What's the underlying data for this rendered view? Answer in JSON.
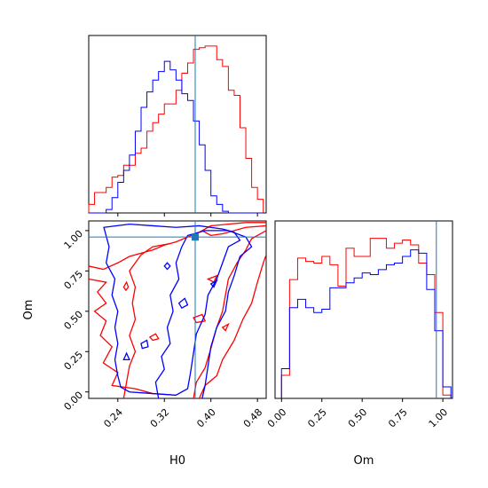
{
  "chart_data": [
    {
      "type": "histogram",
      "panel": "H0 marginal",
      "xlim": [
        0.19,
        0.495
      ],
      "truth": 0.373,
      "series": [
        {
          "name": "",
          "color": "#ff0000",
          "bin_edges": [
            0.19,
            0.2,
            0.21,
            0.22,
            0.23,
            0.24,
            0.25,
            0.26,
            0.27,
            0.28,
            0.29,
            0.3,
            0.31,
            0.32,
            0.33,
            0.34,
            0.35,
            0.36,
            0.37,
            0.38,
            0.39,
            0.4,
            0.41,
            0.42,
            0.43,
            0.44,
            0.45,
            0.46,
            0.47,
            0.48,
            0.49
          ],
          "counts": [
            0.05,
            0.12,
            0.12,
            0.15,
            0.21,
            0.22,
            0.28,
            0.28,
            0.35,
            0.38,
            0.48,
            0.53,
            0.58,
            0.64,
            0.64,
            0.72,
            0.82,
            0.88,
            0.96,
            0.97,
            0.98,
            0.98,
            0.9,
            0.86,
            0.72,
            0.69,
            0.5,
            0.32,
            0.15,
            0.08
          ]
        },
        {
          "name": "",
          "color": "#0000ff",
          "bin_edges": [
            0.19,
            0.2,
            0.21,
            0.22,
            0.23,
            0.24,
            0.25,
            0.26,
            0.27,
            0.28,
            0.29,
            0.3,
            0.31,
            0.32,
            0.33,
            0.34,
            0.35,
            0.36,
            0.37,
            0.38,
            0.39,
            0.4,
            0.41,
            0.42,
            0.43,
            0.44,
            0.45,
            0.46,
            0.47,
            0.48,
            0.49
          ],
          "counts": [
            0.0,
            0.0,
            0.0,
            0.02,
            0.09,
            0.18,
            0.25,
            0.34,
            0.48,
            0.62,
            0.71,
            0.78,
            0.83,
            0.89,
            0.84,
            0.78,
            0.7,
            0.66,
            0.54,
            0.4,
            0.25,
            0.1,
            0.05,
            0.01,
            0.0,
            0.0,
            0.0,
            0.0,
            0.0,
            0.0
          ]
        }
      ],
      "xticks": [
        "0.24",
        "0.32",
        "0.40",
        "0.48"
      ]
    },
    {
      "type": "contour",
      "panel": "H0 vs Om",
      "xlabel": "H0",
      "ylabel": "Om",
      "xlim": [
        0.19,
        0.495
      ],
      "ylim": [
        -0.04,
        1.06
      ],
      "truth": {
        "x": 0.373,
        "y": 0.96
      },
      "xticks": [
        "0.24",
        "0.32",
        "0.40",
        "0.48"
      ],
      "yticks": [
        "0.00",
        "0.25",
        "0.50",
        "0.75",
        "1.00"
      ],
      "series": [
        {
          "name": "",
          "color": "#ff0000",
          "levels": 2
        },
        {
          "name": "",
          "color": "#0000ff",
          "levels": 2
        }
      ]
    },
    {
      "type": "histogram",
      "panel": "Om marginal",
      "xlabel": "Om",
      "xlim": [
        -0.04,
        1.06
      ],
      "truth": 0.96,
      "xticks": [
        "0.00",
        "0.25",
        "0.50",
        "0.75",
        "1.00"
      ],
      "series": [
        {
          "name": "",
          "color": "#ff0000",
          "bin_edges": [
            0.0,
            0.05,
            0.1,
            0.15,
            0.2,
            0.25,
            0.3,
            0.35,
            0.4,
            0.45,
            0.5,
            0.55,
            0.6,
            0.65,
            0.7,
            0.75,
            0.8,
            0.85,
            0.9,
            0.95,
            1.0,
            1.05
          ],
          "counts": [
            0.14,
            0.72,
            0.85,
            0.83,
            0.82,
            0.86,
            0.81,
            0.68,
            0.91,
            0.86,
            0.86,
            0.97,
            0.97,
            0.91,
            0.94,
            0.96,
            0.93,
            0.82,
            0.75,
            0.52,
            0.02
          ]
        },
        {
          "name": "",
          "color": "#0000ff",
          "bin_edges": [
            0.0,
            0.05,
            0.1,
            0.15,
            0.2,
            0.25,
            0.3,
            0.35,
            0.4,
            0.45,
            0.5,
            0.55,
            0.6,
            0.65,
            0.7,
            0.75,
            0.8,
            0.85,
            0.9,
            0.95,
            1.0,
            1.05
          ],
          "counts": [
            0.18,
            0.55,
            0.6,
            0.55,
            0.52,
            0.54,
            0.67,
            0.67,
            0.7,
            0.73,
            0.76,
            0.75,
            0.78,
            0.81,
            0.82,
            0.86,
            0.9,
            0.88,
            0.66,
            0.41,
            0.07
          ]
        }
      ]
    }
  ]
}
